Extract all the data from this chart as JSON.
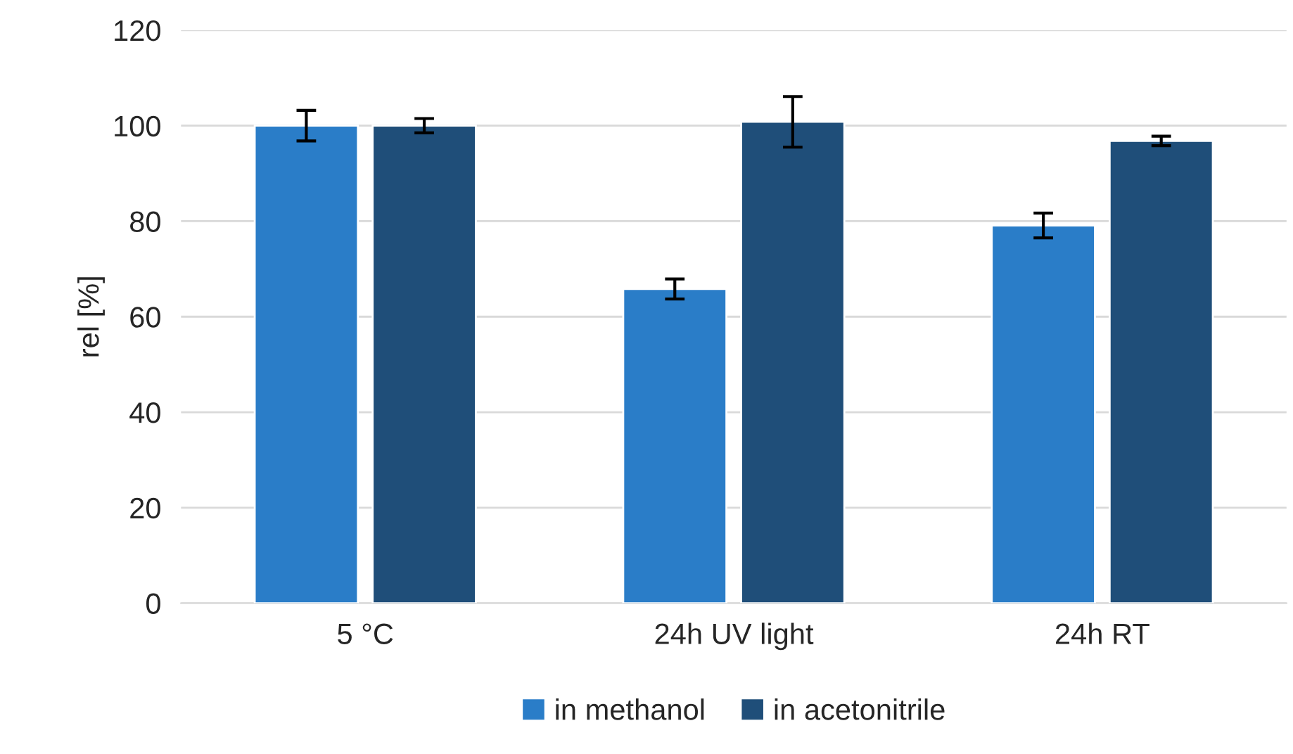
{
  "chart_data": {
    "type": "bar",
    "ylabel": "rel [%]",
    "categories": [
      "5 °C",
      "24h UV light",
      "24h RT"
    ],
    "series": [
      {
        "name": "in methanol",
        "color": "#2a7dc8",
        "values": [
          100,
          65.8,
          79.1
        ],
        "errors": [
          3.2,
          2.1,
          2.6
        ]
      },
      {
        "name": "in acetonitrile",
        "color": "#1f4e79",
        "values": [
          100,
          100.8,
          96.8
        ],
        "errors": [
          1.5,
          5.3,
          1.0
        ]
      }
    ],
    "ylim": [
      0,
      120
    ],
    "yticks": [
      0,
      20,
      40,
      60,
      80,
      100,
      120
    ],
    "grid": "y",
    "legend": "bottom"
  }
}
